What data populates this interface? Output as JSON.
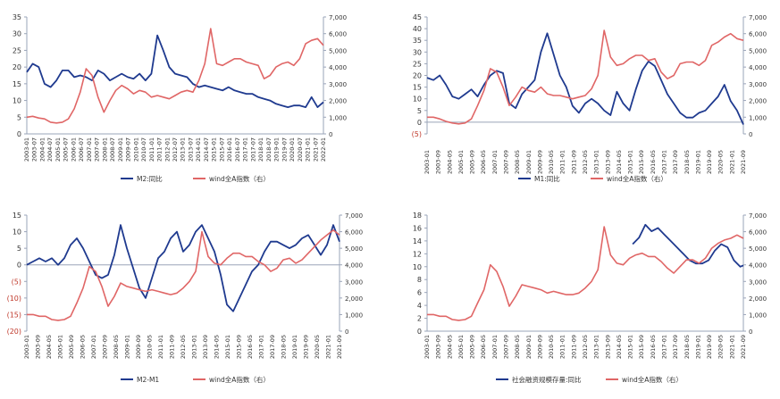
{
  "colors": {
    "blue": "#1f3a8f",
    "red": "#e06666",
    "axis": "#9aa4b8",
    "tick_text": "#333333",
    "neg_text": "#c0392b"
  },
  "chart_data": [
    {
      "type": "line",
      "x_tick_labels": [
        "2003-01",
        "2003-07",
        "2004-01",
        "2004-07",
        "2005-01",
        "2005-07",
        "2006-01",
        "2006-07",
        "2007-01",
        "2007-07",
        "2008-01",
        "2008-07",
        "2009-01",
        "2009-07",
        "2010-01",
        "2010-07",
        "2011-01",
        "2011-07",
        "2012-01",
        "2012-07",
        "2013-01",
        "2013-07",
        "2014-01",
        "2014-07",
        "2015-01",
        "2015-07",
        "2016-01",
        "2016-07",
        "2017-01",
        "2017-07",
        "2018-01",
        "2018-07",
        "2019-01",
        "2019-07",
        "2020-01",
        "2020-07",
        "2021-01",
        "2021-07",
        "2022-01"
      ],
      "left_ticks": [
        "0",
        "5",
        "10",
        "15",
        "20",
        "25",
        "30",
        "35"
      ],
      "left_range": [
        0,
        35
      ],
      "right_ticks": [
        "0",
        "1,000",
        "2,000",
        "3,000",
        "4,000",
        "5,000",
        "6,000",
        "7,000"
      ],
      "right_range": [
        0,
        7000
      ],
      "series": [
        {
          "name": "M2:同比",
          "axis": "left",
          "t": [
            0,
            0.02,
            0.04,
            0.06,
            0.08,
            0.1,
            0.12,
            0.14,
            0.16,
            0.18,
            0.2,
            0.22,
            0.24,
            0.26,
            0.28,
            0.3,
            0.32,
            0.34,
            0.36,
            0.38,
            0.4,
            0.42,
            0.44,
            0.46,
            0.48,
            0.5,
            0.52,
            0.54,
            0.56,
            0.58,
            0.6,
            0.62,
            0.64,
            0.66,
            0.68,
            0.7,
            0.72,
            0.74,
            0.76,
            0.78,
            0.8,
            0.82,
            0.84,
            0.86,
            0.88,
            0.9,
            0.92,
            0.94,
            0.96,
            0.98,
            1.0
          ],
          "v": [
            18.5,
            21,
            20,
            15,
            14,
            16,
            19,
            19,
            17,
            17.5,
            17,
            16,
            19,
            18,
            16,
            17,
            18,
            17,
            16.5,
            18,
            16,
            18,
            29.5,
            25,
            20,
            18,
            17.5,
            17,
            15,
            14,
            14.5,
            14,
            13.5,
            13,
            14,
            13,
            12.5,
            12,
            12,
            11,
            10.5,
            10,
            9,
            8.5,
            8,
            8.5,
            8.5,
            8,
            11,
            8,
            9.5
          ]
        },
        {
          "name": "wind全A指数（右）",
          "axis": "right",
          "t": [
            0,
            0.02,
            0.04,
            0.06,
            0.08,
            0.1,
            0.12,
            0.14,
            0.16,
            0.18,
            0.2,
            0.22,
            0.24,
            0.26,
            0.28,
            0.3,
            0.32,
            0.34,
            0.36,
            0.38,
            0.4,
            0.42,
            0.44,
            0.46,
            0.48,
            0.5,
            0.52,
            0.54,
            0.56,
            0.58,
            0.6,
            0.62,
            0.64,
            0.66,
            0.68,
            0.7,
            0.72,
            0.74,
            0.76,
            0.78,
            0.8,
            0.82,
            0.84,
            0.86,
            0.88,
            0.9,
            0.92,
            0.94,
            0.96,
            0.98,
            1.0
          ],
          "v": [
            1000,
            1050,
            950,
            900,
            700,
            650,
            700,
            900,
            1500,
            2500,
            3900,
            3500,
            2200,
            1300,
            2000,
            2600,
            2900,
            2700,
            2400,
            2600,
            2500,
            2200,
            2300,
            2200,
            2100,
            2300,
            2500,
            2600,
            2500,
            3200,
            4200,
            6300,
            4200,
            4100,
            4300,
            4500,
            4500,
            4300,
            4200,
            4100,
            3300,
            3500,
            4000,
            4200,
            4300,
            4100,
            4500,
            5400,
            5600,
            5700,
            5300
          ]
        }
      ],
      "legend": [
        "M2:同比",
        "wind全A指数（右）"
      ]
    },
    {
      "type": "line",
      "x_tick_labels": [
        "2003-01",
        "2003-09",
        "2004-05",
        "2005-01",
        "2005-09",
        "2006-05",
        "2007-01",
        "2007-09",
        "2008-05",
        "2009-01",
        "2009-09",
        "2010-05",
        "2011-01",
        "2011-09",
        "2012-05",
        "2013-01",
        "2013-09",
        "2014-05",
        "2015-01",
        "2015-09",
        "2016-05",
        "2017-01",
        "2017-09",
        "2018-05",
        "2019-01",
        "2019-09",
        "2020-05",
        "2021-01",
        "2021-09"
      ],
      "left_ticks": [
        "(5)",
        "0",
        "5",
        "10",
        "15",
        "20",
        "25",
        "30",
        "35",
        "40",
        "45"
      ],
      "left_range": [
        -5,
        45
      ],
      "right_ticks": [
        "0",
        "1,000",
        "2,000",
        "3,000",
        "4,000",
        "5,000",
        "6,000",
        "7,000"
      ],
      "right_range": [
        0,
        7000
      ],
      "series": [
        {
          "name": "M1:同比",
          "axis": "left",
          "t": [
            0,
            0.02,
            0.04,
            0.06,
            0.08,
            0.1,
            0.12,
            0.14,
            0.16,
            0.18,
            0.2,
            0.22,
            0.24,
            0.26,
            0.28,
            0.3,
            0.32,
            0.34,
            0.36,
            0.38,
            0.4,
            0.42,
            0.44,
            0.46,
            0.48,
            0.5,
            0.52,
            0.54,
            0.56,
            0.58,
            0.6,
            0.62,
            0.64,
            0.66,
            0.68,
            0.7,
            0.72,
            0.74,
            0.76,
            0.78,
            0.8,
            0.82,
            0.84,
            0.86,
            0.88,
            0.9,
            0.92,
            0.94,
            0.96,
            0.98,
            1.0
          ],
          "v": [
            19,
            18,
            20,
            16,
            11,
            10,
            12,
            14,
            11,
            16,
            20,
            22,
            21,
            8,
            6,
            12,
            15,
            18,
            30,
            38,
            29,
            20,
            15,
            7,
            4,
            8,
            10,
            8,
            5,
            3,
            13,
            8,
            5,
            14,
            22,
            26,
            24,
            18,
            12,
            8,
            4,
            2,
            2,
            4,
            5,
            8,
            11,
            16,
            9,
            5,
            -1
          ]
        },
        {
          "name": "wind全A指数（右）",
          "axis": "right",
          "t": [
            0,
            0.02,
            0.04,
            0.06,
            0.08,
            0.1,
            0.12,
            0.14,
            0.16,
            0.18,
            0.2,
            0.22,
            0.24,
            0.26,
            0.28,
            0.3,
            0.32,
            0.34,
            0.36,
            0.38,
            0.4,
            0.42,
            0.44,
            0.46,
            0.48,
            0.5,
            0.52,
            0.54,
            0.56,
            0.58,
            0.6,
            0.62,
            0.64,
            0.66,
            0.68,
            0.7,
            0.72,
            0.74,
            0.76,
            0.78,
            0.8,
            0.82,
            0.84,
            0.86,
            0.88,
            0.9,
            0.92,
            0.94,
            0.96,
            0.98,
            1.0
          ],
          "v": [
            1000,
            1000,
            900,
            750,
            650,
            600,
            650,
            900,
            1700,
            2600,
            3900,
            3700,
            2800,
            1700,
            2200,
            2800,
            2600,
            2500,
            2800,
            2400,
            2300,
            2300,
            2200,
            2100,
            2200,
            2300,
            2700,
            3500,
            6200,
            4600,
            4100,
            4200,
            4500,
            4700,
            4700,
            4400,
            4500,
            3700,
            3300,
            3500,
            4200,
            4300,
            4300,
            4100,
            4400,
            5300,
            5500,
            5800,
            6000,
            5700,
            5600
          ]
        }
      ],
      "legend": [
        "M1:同比",
        "wind全A指数（右）"
      ]
    },
    {
      "type": "line",
      "x_tick_labels": [
        "2003-01",
        "2003-09",
        "2004-05",
        "2005-01",
        "2005-09",
        "2006-05",
        "2007-01",
        "2007-09",
        "2008-05",
        "2009-01",
        "2009-09",
        "2010-05",
        "2011-01",
        "2011-09",
        "2012-05",
        "2013-01",
        "2013-09",
        "2014-05",
        "2015-01",
        "2015-09",
        "2016-05",
        "2017-01",
        "2017-09",
        "2018-05",
        "2019-01",
        "2019-09",
        "2020-05",
        "2021-01",
        "2021-09"
      ],
      "left_ticks": [
        "(20)",
        "(15)",
        "(10)",
        "(5)",
        "0",
        "5",
        "10",
        "15"
      ],
      "left_range": [
        -20,
        15
      ],
      "right_ticks": [
        "0",
        "1,000",
        "2,000",
        "3,000",
        "4,000",
        "5,000",
        "6,000",
        "7,000"
      ],
      "right_range": [
        0,
        7000
      ],
      "series": [
        {
          "name": "M2-M1",
          "axis": "left",
          "t": [
            0,
            0.02,
            0.04,
            0.06,
            0.08,
            0.1,
            0.12,
            0.14,
            0.16,
            0.18,
            0.2,
            0.22,
            0.24,
            0.26,
            0.28,
            0.3,
            0.32,
            0.34,
            0.36,
            0.38,
            0.4,
            0.42,
            0.44,
            0.46,
            0.48,
            0.5,
            0.52,
            0.54,
            0.56,
            0.58,
            0.6,
            0.62,
            0.64,
            0.66,
            0.68,
            0.7,
            0.72,
            0.74,
            0.76,
            0.78,
            0.8,
            0.82,
            0.84,
            0.86,
            0.88,
            0.9,
            0.92,
            0.94,
            0.96,
            0.98,
            1.0
          ],
          "v": [
            0,
            1,
            2,
            1,
            2,
            0,
            2,
            6,
            8,
            5,
            1,
            -3,
            -4,
            -3,
            3,
            12,
            5,
            -1,
            -7,
            -10,
            -4,
            2,
            4,
            8,
            10,
            4,
            6,
            10,
            12,
            8,
            4,
            -3,
            -12,
            -14,
            -10,
            -6,
            -2,
            0,
            4,
            7,
            7,
            6,
            5,
            6,
            8,
            9,
            6,
            3,
            6,
            12,
            7
          ]
        },
        {
          "name": "wind全A指数（右）",
          "axis": "right",
          "t": [
            0,
            0.02,
            0.04,
            0.06,
            0.08,
            0.1,
            0.12,
            0.14,
            0.16,
            0.18,
            0.2,
            0.22,
            0.24,
            0.26,
            0.28,
            0.3,
            0.32,
            0.34,
            0.36,
            0.38,
            0.4,
            0.42,
            0.44,
            0.46,
            0.48,
            0.5,
            0.52,
            0.54,
            0.56,
            0.58,
            0.6,
            0.62,
            0.64,
            0.66,
            0.68,
            0.7,
            0.72,
            0.74,
            0.76,
            0.78,
            0.8,
            0.82,
            0.84,
            0.86,
            0.88,
            0.9,
            0.92,
            0.94,
            0.96,
            0.98,
            1.0
          ],
          "v": [
            1000,
            1000,
            900,
            900,
            700,
            650,
            700,
            900,
            1700,
            2600,
            3900,
            3600,
            2700,
            1500,
            2100,
            2900,
            2700,
            2600,
            2500,
            2400,
            2500,
            2400,
            2300,
            2200,
            2300,
            2600,
            3000,
            3600,
            6000,
            4500,
            4100,
            4000,
            4400,
            4700,
            4700,
            4500,
            4500,
            4200,
            4000,
            3600,
            3800,
            4300,
            4400,
            4100,
            4300,
            4700,
            5100,
            5500,
            5800,
            6100,
            5800
          ]
        }
      ],
      "legend": [
        "M2-M1",
        "wind全A指数（右）"
      ]
    },
    {
      "type": "line",
      "x_tick_labels": [
        "2003-01",
        "2003-09",
        "2004-05",
        "2005-01",
        "2005-09",
        "2006-05",
        "2007-01",
        "2007-09",
        "2008-05",
        "2009-01",
        "2009-09",
        "2010-05",
        "2011-01",
        "2011-09",
        "2012-05",
        "2013-01",
        "2013-09",
        "2014-05",
        "2015-01",
        "2015-09",
        "2016-05",
        "2017-01",
        "2017-09",
        "2018-05",
        "2019-01",
        "2019-09",
        "2020-05",
        "2021-01",
        "2021-09"
      ],
      "left_ticks": [
        "0",
        "2",
        "4",
        "6",
        "8",
        "10",
        "12",
        "14",
        "16",
        "18"
      ],
      "left_range": [
        0,
        18
      ],
      "right_ticks": [
        "0",
        "1,000",
        "2,000",
        "3,000",
        "4,000",
        "5,000",
        "6,000",
        "7,000"
      ],
      "right_range": [
        0,
        7000
      ],
      "series": [
        {
          "name": "社会融资规模存量:同比",
          "axis": "left",
          "t": [
            0.65,
            0.67,
            0.69,
            0.71,
            0.73,
            0.75,
            0.77,
            0.79,
            0.81,
            0.83,
            0.85,
            0.87,
            0.89,
            0.91,
            0.93,
            0.95,
            0.97,
            0.99,
            1.0
          ],
          "v": [
            13.5,
            14.5,
            16.5,
            15.5,
            16,
            15,
            14,
            13,
            12,
            11,
            10.5,
            10.5,
            11,
            12.5,
            13.5,
            13,
            11,
            10,
            10.2
          ]
        },
        {
          "name": "wind全A指数（右）",
          "axis": "right",
          "t": [
            0,
            0.02,
            0.04,
            0.06,
            0.08,
            0.1,
            0.12,
            0.14,
            0.16,
            0.18,
            0.2,
            0.22,
            0.24,
            0.26,
            0.28,
            0.3,
            0.32,
            0.34,
            0.36,
            0.38,
            0.4,
            0.42,
            0.44,
            0.46,
            0.48,
            0.5,
            0.52,
            0.54,
            0.56,
            0.58,
            0.6,
            0.62,
            0.64,
            0.66,
            0.68,
            0.7,
            0.72,
            0.74,
            0.76,
            0.78,
            0.8,
            0.82,
            0.84,
            0.86,
            0.88,
            0.9,
            0.92,
            0.94,
            0.96,
            0.98,
            1.0
          ],
          "v": [
            1000,
            1000,
            900,
            900,
            700,
            650,
            700,
            900,
            1700,
            2500,
            4000,
            3600,
            2700,
            1500,
            2100,
            2800,
            2700,
            2600,
            2500,
            2300,
            2400,
            2300,
            2200,
            2200,
            2300,
            2600,
            3000,
            3700,
            6300,
            4600,
            4100,
            4000,
            4400,
            4600,
            4700,
            4500,
            4500,
            4200,
            3800,
            3500,
            3900,
            4300,
            4300,
            4100,
            4400,
            5000,
            5300,
            5500,
            5600,
            5800,
            5600
          ]
        }
      ],
      "legend": [
        "社会融资规模存量:同比",
        "wind全A指数（右）"
      ]
    }
  ]
}
